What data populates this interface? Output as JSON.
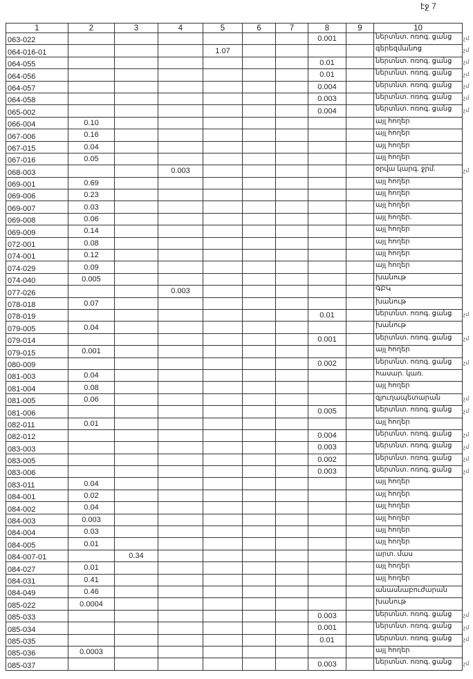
{
  "page_label": "էջ 7",
  "columns": [
    "1",
    "2",
    "3",
    "4",
    "5",
    "6",
    "7",
    "8",
    "9",
    "10"
  ],
  "rows": [
    {
      "cells": [
        "063-022",
        "",
        "",
        "",
        "",
        "",
        "",
        "0.001",
        "",
        "ներտնտ. ոռոգ. ցանց"
      ],
      "mark": "չմ"
    },
    {
      "cells": [
        "064-016-01",
        "",
        "",
        "",
        "1.07",
        "",
        "",
        "",
        "",
        "գերեզմանոց"
      ],
      "mark": "չմ"
    },
    {
      "cells": [
        "064-055",
        "",
        "",
        "",
        "",
        "",
        "",
        "0.01",
        "",
        "ներտնտ. ոռոգ. ցանց"
      ],
      "mark": "չմ"
    },
    {
      "cells": [
        "064-056",
        "",
        "",
        "",
        "",
        "",
        "",
        "0.01",
        "",
        "ներտնտ. ոռոգ. ցանց"
      ],
      "mark": "չմ"
    },
    {
      "cells": [
        "064-057",
        "",
        "",
        "",
        "",
        "",
        "",
        "0.004",
        "",
        "ներտնտ. ոռոգ. ցանց"
      ],
      "mark": "չմ"
    },
    {
      "cells": [
        "064-058",
        "",
        "",
        "",
        "",
        "",
        "",
        "0.003",
        "",
        "ներտնտ. ոռոգ. ցանց"
      ],
      "mark": "չմ"
    },
    {
      "cells": [
        "065-002",
        "",
        "",
        "",
        "",
        "",
        "",
        "0.004",
        "",
        "ներտնտ. ոռոգ. ցանց"
      ],
      "mark": "չմ"
    },
    {
      "cells": [
        "066-004",
        "0.10",
        "",
        "",
        "",
        "",
        "",
        "",
        "",
        "այլ հողեր"
      ],
      "mark": ""
    },
    {
      "cells": [
        "067-006",
        "0.16",
        "",
        "",
        "",
        "",
        "",
        "",
        "",
        "այլ հողեր"
      ],
      "mark": ""
    },
    {
      "cells": [
        "067-015",
        "0.04",
        "",
        "",
        "",
        "",
        "",
        "",
        "",
        "այլ հողեր"
      ],
      "mark": ""
    },
    {
      "cells": [
        "067-016",
        "0.05",
        "",
        "",
        "",
        "",
        "",
        "",
        "",
        "այլ հողեր"
      ],
      "mark": ""
    },
    {
      "cells": [
        "068-003",
        "",
        "",
        "0.003",
        "",
        "",
        "",
        "",
        "",
        "օրվա կարգ. ջրմ."
      ],
      "mark": "չմ"
    },
    {
      "cells": [
        "069-001",
        "0.69",
        "",
        "",
        "",
        "",
        "",
        "",
        "",
        "այլ հողեր"
      ],
      "mark": ""
    },
    {
      "cells": [
        "069-006",
        "0.23",
        "",
        "",
        "",
        "",
        "",
        "",
        "",
        "այլ հողեր"
      ],
      "mark": ""
    },
    {
      "cells": [
        "069-007",
        "0.03",
        "",
        "",
        "",
        "",
        "",
        "",
        "",
        "այլ հողեր"
      ],
      "mark": ""
    },
    {
      "cells": [
        "069-008",
        "0.06",
        "",
        "",
        "",
        "",
        "",
        "",
        "",
        "այլ հողեր."
      ],
      "mark": ""
    },
    {
      "cells": [
        "069-009",
        "0.14",
        "",
        "",
        "",
        "",
        "",
        "",
        "",
        "այլ հողեր"
      ],
      "mark": ""
    },
    {
      "cells": [
        "072-001",
        "0.08",
        "",
        "",
        "",
        "",
        "",
        "",
        "",
        "այլ հողեր"
      ],
      "mark": ""
    },
    {
      "cells": [
        "074-001",
        "0.12",
        "",
        "",
        "",
        "",
        "",
        "",
        "",
        "այլ հողեր"
      ],
      "mark": ""
    },
    {
      "cells": [
        "074-029",
        "0.09",
        "",
        "",
        "",
        "",
        "",
        "",
        "",
        "այլ հողեր"
      ],
      "mark": ""
    },
    {
      "cells": [
        "074-040",
        "0.005",
        "",
        "",
        "",
        "",
        "",
        "",
        "",
        "խանութ"
      ],
      "mark": ""
    },
    {
      "cells": [
        "077-026",
        "",
        "",
        "0.003",
        "",
        "",
        "",
        "",
        "",
        "ԳԲԿ"
      ],
      "mark": ""
    },
    {
      "cells": [
        "078-018",
        "0.07",
        "",
        "",
        "",
        "",
        "",
        "",
        "",
        "խանութ"
      ],
      "mark": ""
    },
    {
      "cells": [
        "078-019",
        "",
        "",
        "",
        "",
        "",
        "",
        "0.01",
        "",
        "ներտնտ. ոռոգ. ցանց"
      ],
      "mark": "չմ"
    },
    {
      "cells": [
        "079-005",
        "0.04",
        "",
        "",
        "",
        "",
        "",
        "",
        "",
        "խանութ"
      ],
      "mark": ""
    },
    {
      "cells": [
        "079-014",
        "",
        "",
        "",
        "",
        "",
        "",
        "0.001",
        "",
        "ներտնտ. ոռոգ. ցանց"
      ],
      "mark": "չմ"
    },
    {
      "cells": [
        "079-015",
        "0.001",
        "",
        "",
        "",
        "",
        "",
        "",
        "",
        "այլ հողեր"
      ],
      "mark": ""
    },
    {
      "cells": [
        "080-009",
        "",
        "",
        "",
        "",
        "",
        "",
        "0.002",
        "",
        "ներտնտ. ոռոգ. ցանց"
      ],
      "mark": "չմ"
    },
    {
      "cells": [
        "081-003",
        "0.04",
        "",
        "",
        "",
        "",
        "",
        "",
        "",
        "հասար. կառ."
      ],
      "mark": ""
    },
    {
      "cells": [
        "081-004",
        "0.08",
        "",
        "",
        "",
        "",
        "",
        "",
        "",
        "այլ հողեր"
      ],
      "mark": ""
    },
    {
      "cells": [
        "081-005",
        "0.06",
        "",
        "",
        "",
        "",
        "",
        "",
        "",
        "գյուղապետարան"
      ],
      "mark": "չմ"
    },
    {
      "cells": [
        "081-006",
        "",
        "",
        "",
        "",
        "",
        "",
        "0.005",
        "",
        "ներտնտ. ոռոգ. ցանց"
      ],
      "mark": "չմ"
    },
    {
      "cells": [
        "082-011",
        "0.01",
        "",
        "",
        "",
        "",
        "",
        "",
        "",
        "այլ հողեր"
      ],
      "mark": ""
    },
    {
      "cells": [
        "082-012",
        "",
        "",
        "",
        "",
        "",
        "",
        "0.004",
        "",
        "ներտնտ. ոռոգ. ցանց"
      ],
      "mark": "չմ"
    },
    {
      "cells": [
        "083-003",
        "",
        "",
        "",
        "",
        "",
        "",
        "0.003",
        "",
        "ներտնտ. ոռոգ. ցանց"
      ],
      "mark": "չմ"
    },
    {
      "cells": [
        "083-005",
        "",
        "",
        "",
        "",
        "",
        "",
        "0.002",
        "",
        "ներտնտ. ոռոգ. ցանց"
      ],
      "mark": "չմ"
    },
    {
      "cells": [
        "083-006",
        "",
        "",
        "",
        "",
        "",
        "",
        "0.003",
        "",
        "ներտնտ. ոռոգ. ցանց"
      ],
      "mark": "չմ"
    },
    {
      "cells": [
        "083-011",
        "0.04",
        "",
        "",
        "",
        "",
        "",
        "",
        "",
        "այլ հողեր"
      ],
      "mark": ""
    },
    {
      "cells": [
        "084-001",
        "0.02",
        "",
        "",
        "",
        "",
        "",
        "",
        "",
        "այլ հողեր"
      ],
      "mark": ""
    },
    {
      "cells": [
        "084-002",
        "0.04",
        "",
        "",
        "",
        "",
        "",
        "",
        "",
        "այլ հողեր"
      ],
      "mark": ""
    },
    {
      "cells": [
        "084-003",
        "0.003",
        "",
        "",
        "",
        "",
        "",
        "",
        "",
        "այլ հողեր"
      ],
      "mark": ""
    },
    {
      "cells": [
        "084-004",
        "0.03",
        "",
        "",
        "",
        "",
        "",
        "",
        "",
        "այլ հողեր"
      ],
      "mark": ""
    },
    {
      "cells": [
        "084-005",
        "0.01",
        "",
        "",
        "",
        "",
        "",
        "",
        "",
        "այլ հողեր"
      ],
      "mark": ""
    },
    {
      "cells": [
        "084-007-01",
        "",
        "0.34",
        "",
        "",
        "",
        "",
        "",
        "",
        "արտ. մաս"
      ],
      "mark": ""
    },
    {
      "cells": [
        "084-027",
        "0.01",
        "",
        "",
        "",
        "",
        "",
        "",
        "",
        "այլ հողեր"
      ],
      "mark": ""
    },
    {
      "cells": [
        "084-031",
        "0.41",
        "",
        "",
        "",
        "",
        "",
        "",
        "",
        "այլ հողեր"
      ],
      "mark": ""
    },
    {
      "cells": [
        "084-049",
        "0.46",
        "",
        "",
        "",
        "",
        "",
        "",
        "",
        "անասնաբուժարան"
      ],
      "mark": ""
    },
    {
      "cells": [
        "085-022",
        "0.0004",
        "",
        "",
        "",
        "",
        "",
        "",
        "",
        "խանութ"
      ],
      "mark": ""
    },
    {
      "cells": [
        "085-033",
        "",
        "",
        "",
        "",
        "",
        "",
        "0.003",
        "",
        "ներտնտ. ոռոգ. ցանց"
      ],
      "mark": "չմ"
    },
    {
      "cells": [
        "085-034",
        "",
        "",
        "",
        "",
        "",
        "",
        "0.001",
        "",
        "ներտնտ. ոռոգ. ցանց"
      ],
      "mark": "չմ"
    },
    {
      "cells": [
        "085-035",
        "",
        "",
        "",
        "",
        "",
        "",
        "0.01",
        "",
        "ներտնտ. ոռոգ. ցանց"
      ],
      "mark": "չմ"
    },
    {
      "cells": [
        "085-036",
        "0.0003",
        "",
        "",
        "",
        "",
        "",
        "",
        "",
        "այլ հողեր"
      ],
      "mark": ""
    },
    {
      "cells": [
        "085-037",
        "",
        "",
        "",
        "",
        "",
        "",
        "0.003",
        "",
        "ներտնտ. ոռոգ. ցանց"
      ],
      "mark": "չմ"
    }
  ]
}
